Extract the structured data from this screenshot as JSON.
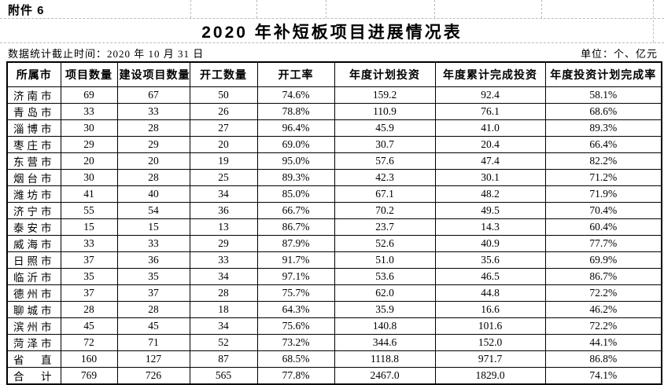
{
  "page": {
    "attachment_label": "附件 6",
    "title": "2020 年补短板项目进展情况表",
    "data_cutoff_note": "数据统计截止时间：2020 年 10 月 31 日",
    "unit_note": "单位：个、亿元"
  },
  "table": {
    "columns": [
      "所属市",
      "项目数量",
      "建设项目数量",
      "开工数量",
      "开工率",
      "年度计划投资",
      "年度累计完成投资",
      "年度投资计划完成率"
    ],
    "rows": [
      [
        "济南市",
        "69",
        "67",
        "50",
        "74.6%",
        "159.2",
        "92.4",
        "58.1%"
      ],
      [
        "青岛市",
        "33",
        "33",
        "26",
        "78.8%",
        "110.9",
        "76.1",
        "68.6%"
      ],
      [
        "淄博市",
        "30",
        "28",
        "27",
        "96.4%",
        "45.9",
        "41.0",
        "89.3%"
      ],
      [
        "枣庄市",
        "29",
        "29",
        "20",
        "69.0%",
        "30.7",
        "20.4",
        "66.4%"
      ],
      [
        "东营市",
        "20",
        "20",
        "19",
        "95.0%",
        "57.6",
        "47.4",
        "82.2%"
      ],
      [
        "烟台市",
        "30",
        "28",
        "25",
        "89.3%",
        "42.3",
        "30.1",
        "71.2%"
      ],
      [
        "潍坊市",
        "41",
        "40",
        "34",
        "85.0%",
        "67.1",
        "48.2",
        "71.9%"
      ],
      [
        "济宁市",
        "55",
        "54",
        "36",
        "66.7%",
        "70.2",
        "49.5",
        "70.4%"
      ],
      [
        "泰安市",
        "15",
        "15",
        "13",
        "86.7%",
        "23.7",
        "14.3",
        "60.4%"
      ],
      [
        "威海市",
        "33",
        "33",
        "29",
        "87.9%",
        "52.6",
        "40.9",
        "77.7%"
      ],
      [
        "日照市",
        "37",
        "36",
        "33",
        "91.7%",
        "51.0",
        "35.6",
        "69.9%"
      ],
      [
        "临沂市",
        "35",
        "35",
        "34",
        "97.1%",
        "53.6",
        "46.5",
        "86.7%"
      ],
      [
        "德州市",
        "37",
        "37",
        "28",
        "75.7%",
        "62.0",
        "44.8",
        "72.2%"
      ],
      [
        "聊城市",
        "28",
        "28",
        "18",
        "64.3%",
        "35.9",
        "16.6",
        "46.2%"
      ],
      [
        "滨州市",
        "45",
        "45",
        "34",
        "75.6%",
        "140.8",
        "101.6",
        "72.2%"
      ],
      [
        "菏泽市",
        "72",
        "71",
        "52",
        "73.2%",
        "344.6",
        "152.0",
        "44.1%"
      ],
      [
        "省　直",
        "160",
        "127",
        "87",
        "68.5%",
        "1118.8",
        "971.7",
        "86.8%"
      ],
      [
        "合　计",
        "769",
        "726",
        "565",
        "77.8%",
        "2467.0",
        "1829.0",
        "74.1%"
      ]
    ]
  },
  "colors": {
    "text": "#000000",
    "table_border": "#000000",
    "gridline_dashed": "#bcbcbc",
    "background": "#ffffff"
  }
}
